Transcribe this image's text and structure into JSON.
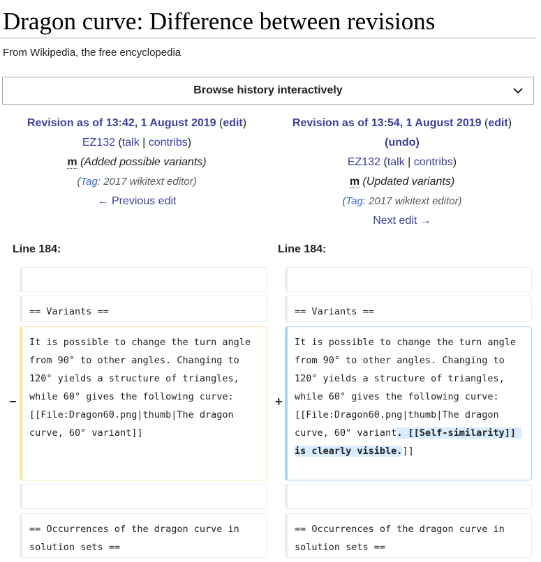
{
  "page": {
    "title": "Dragon curve: Difference between revisions",
    "tagline": "From Wikipedia, the free encyclopedia",
    "browse_label": "Browse history interactively"
  },
  "left_rev": {
    "heading": "Revision as of 13:42, 1 August 2019",
    "edit": "edit",
    "user": "EZ132",
    "talk": "talk",
    "contribs": "contribs",
    "minor": "m",
    "summary": "(Added possible variants)",
    "tag_label": "Tag",
    "tag_value": "2017 wikitext editor",
    "nav": "← Previous edit"
  },
  "right_rev": {
    "heading": "Revision as of 13:54, 1 August 2019",
    "edit": "edit",
    "undo": "undo",
    "user": "EZ132",
    "talk": "talk",
    "contribs": "contribs",
    "minor": "m",
    "summary": "(Updated variants)",
    "tag_label": "Tag",
    "tag_value": "2017 wikitext editor",
    "nav": "Next edit →"
  },
  "diff": {
    "line_label": "Line 184:",
    "variants_heading": "== Variants ==",
    "removed_text": "It is possible to change the turn angle from 90° to other angles. Changing to 120° yields a structure of triangles, while 60° gives the following curve: [[File:Dragon60.png|thumb|The dragon curve, 60° variant]]",
    "added_text_before": "It is possible to change the turn angle from 90° to other angles. Changing to 120° yields a structure of triangles, while 60° gives the following curve: [[File:Dragon60.png|thumb|The dragon curve, 60° variant",
    "added_text_inserted": ". [[Self-similarity]] is clearly visible.",
    "added_text_after": "]]",
    "minus_marker": "−",
    "plus_marker": "+",
    "occurrences_heading": "== Occurrences of the dragon curve in solution sets =="
  },
  "icons": {
    "browse_toggle": "chevron-down-icon"
  }
}
